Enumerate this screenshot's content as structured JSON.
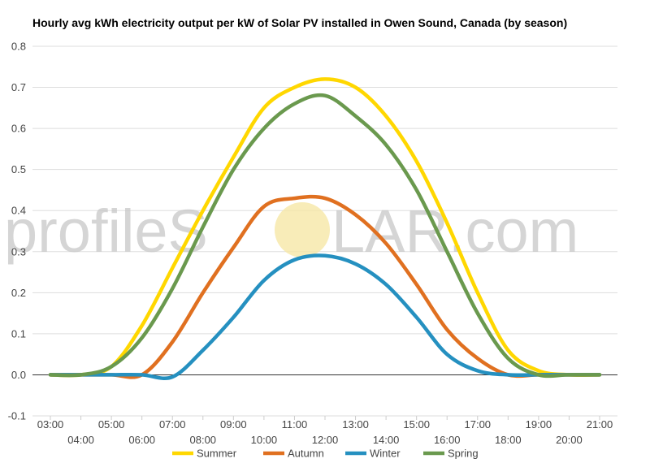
{
  "chart_data": {
    "type": "line",
    "title": "Hourly avg kWh electricity output per kW of Solar PV installed in Owen Sound, Canada (by season)",
    "xlabel": "",
    "ylabel": "",
    "ylim": [
      -0.1,
      0.8
    ],
    "y_ticks": [
      "-0.1",
      "0.0",
      "0.1",
      "0.2",
      "0.3",
      "0.4",
      "0.5",
      "0.6",
      "0.7",
      "0.8"
    ],
    "x_ticks": [
      "03:00",
      "04:00",
      "05:00",
      "06:00",
      "07:00",
      "08:00",
      "09:00",
      "10:00",
      "11:00",
      "12:00",
      "13:00",
      "14:00",
      "15:00",
      "16:00",
      "17:00",
      "18:00",
      "19:00",
      "20:00",
      "21:00"
    ],
    "grid": true,
    "legend_position": "bottom",
    "watermark": {
      "left": "profileS",
      "right": "LAR.com"
    },
    "series": [
      {
        "name": "Summer",
        "color": "#FFD700",
        "values": [
          0.0,
          0.0,
          0.02,
          0.12,
          0.26,
          0.4,
          0.53,
          0.65,
          0.7,
          0.72,
          0.7,
          0.63,
          0.52,
          0.37,
          0.2,
          0.06,
          0.01,
          0.0,
          0.0
        ]
      },
      {
        "name": "Autumn",
        "color": "#E07020",
        "values": [
          0.0,
          0.0,
          0.0,
          0.0,
          0.08,
          0.2,
          0.31,
          0.41,
          0.43,
          0.43,
          0.39,
          0.32,
          0.22,
          0.11,
          0.04,
          0.0,
          0.0,
          0.0,
          0.0
        ]
      },
      {
        "name": "Winter",
        "color": "#2590C0",
        "values": [
          0.0,
          0.0,
          0.0,
          0.0,
          -0.005,
          0.06,
          0.14,
          0.23,
          0.28,
          0.29,
          0.27,
          0.22,
          0.14,
          0.05,
          0.01,
          0.0,
          0.0,
          0.0,
          0.0
        ]
      },
      {
        "name": "Spring",
        "color": "#6A994E",
        "values": [
          0.0,
          0.0,
          0.02,
          0.09,
          0.21,
          0.36,
          0.5,
          0.6,
          0.66,
          0.68,
          0.63,
          0.56,
          0.45,
          0.3,
          0.15,
          0.04,
          0.0,
          0.0,
          0.0
        ]
      }
    ]
  }
}
